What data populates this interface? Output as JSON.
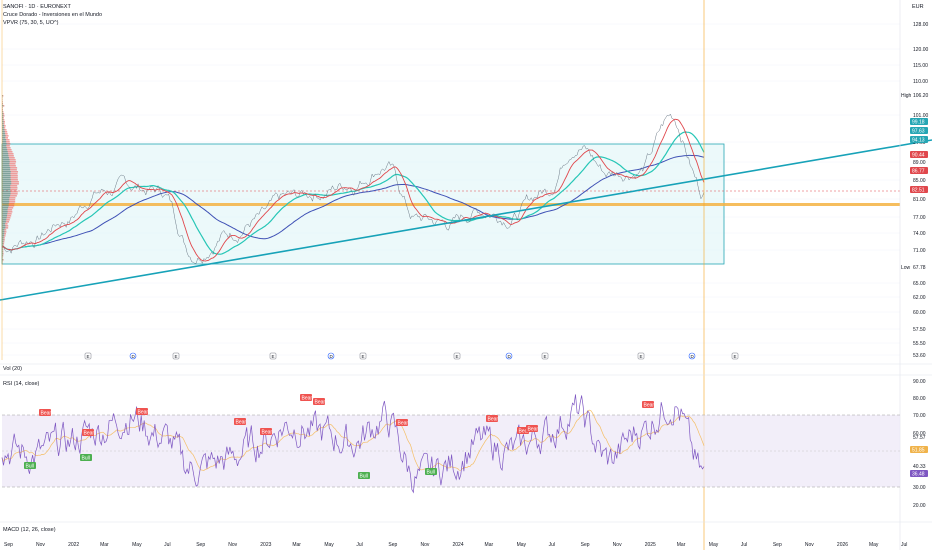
{
  "header": {
    "symbol_line": "SANOFI · 1D · EURONEXT",
    "indicator_line": "Cruce Dorado - Inversiones en el Mundo",
    "vpvr_line": "VPVR (75, 30, 5, UO^)",
    "currency": "EUR"
  },
  "price_axis": {
    "ticks": [
      "128.00",
      "120.00",
      "115.00",
      "110.00",
      "101.00",
      "94.00",
      "89.00",
      "85.00",
      "81.00",
      "77.00",
      "74.00",
      "71.00",
      "65.00",
      "62.00",
      "60.00",
      "57.50",
      "55.50",
      "53.60"
    ],
    "high_label": "High",
    "high_value": "106.20",
    "low_label": "Low",
    "low_value": "67.78",
    "badges": [
      {
        "value": "99.18",
        "color": "#26a6b4"
      },
      {
        "value": "97.63",
        "color": "#26a6b4"
      },
      {
        "value": "94.13",
        "color": "#26a6b4"
      },
      {
        "value": "90.44",
        "color": "#e0474c"
      },
      {
        "value": "86.77",
        "color": "#e0474c"
      },
      {
        "value": "82.51",
        "color": "#e0474c"
      }
    ]
  },
  "volume_panel": {
    "label": "Vol (20)"
  },
  "rsi_panel": {
    "label": "RSI (14, close)",
    "ticks": [
      "90.00",
      "80.00",
      "70.00",
      "60.00",
      "57.57",
      "50.00",
      "40.33",
      "30.00",
      "20.00"
    ],
    "badges": [
      {
        "value": "51.85",
        "color": "#f0b34b"
      },
      {
        "value": "36.48",
        "color": "#7e57c2"
      }
    ],
    "bear_label": "Bear",
    "bull_label": "Bull"
  },
  "macd_panel": {
    "label": "MACD (12, 26, close)"
  },
  "time_axis": [
    "Sep",
    "Nov",
    "2022",
    "Mar",
    "May",
    "Jul",
    "Sep",
    "Nov",
    "2023",
    "Mar",
    "May",
    "Jul",
    "Sep",
    "Nov",
    "2024",
    "Mar",
    "May",
    "Jul",
    "Sep",
    "Nov",
    "2025",
    "Mar",
    "May",
    "Jul",
    "Sep",
    "Nov",
    "2026",
    "May",
    "Jul"
  ],
  "event_markers": [
    "E",
    "D",
    "E",
    "E",
    "D",
    "E",
    "E",
    "D",
    "E",
    "E",
    "D",
    "E"
  ],
  "colors": {
    "candle_up": "#26a69a",
    "candle_down": "#ef5350",
    "ma_fast": "#e0474c",
    "ma_mid": "#26c6b6",
    "ma_slow": "#3f51b5",
    "trendline": "#17a2b8",
    "box_fill": "#e0f5f7",
    "poc_line": "#f5b342",
    "rsi_line": "#7e57c2",
    "rsi_band": "#ede7f6",
    "cursor": "#f5a623"
  },
  "chart_data": {
    "type": "line",
    "title": "SANOFI · 1D · EURONEXT",
    "x": [
      "Sep",
      "Nov",
      "2022",
      "Mar",
      "May",
      "Jul",
      "Sep",
      "Nov",
      "2023",
      "Mar",
      "May",
      "Jul",
      "Sep",
      "Nov",
      "2024",
      "Mar",
      "May",
      "Jul",
      "Sep",
      "Nov",
      "2025",
      "Mar",
      "May"
    ],
    "series": [
      {
        "name": "Price",
        "values": [
          78,
          80,
          84,
          90,
          91,
          90,
          77,
          81,
          84,
          88,
          90,
          92,
          96,
          84,
          83,
          86,
          85,
          90,
          101,
          94,
          95,
          106,
          90
        ]
      }
    ],
    "ylim": [
      53.6,
      130
    ],
    "high": 106.2,
    "low": 67.78,
    "rsi": {
      "values": [
        52,
        48,
        55,
        62,
        70,
        58,
        40,
        45,
        55,
        65,
        60,
        55,
        68,
        35,
        42,
        55,
        50,
        60,
        72,
        45,
        62,
        78,
        36
      ],
      "overbought": 70,
      "oversold": 30,
      "ylim": [
        20,
        90
      ]
    }
  }
}
